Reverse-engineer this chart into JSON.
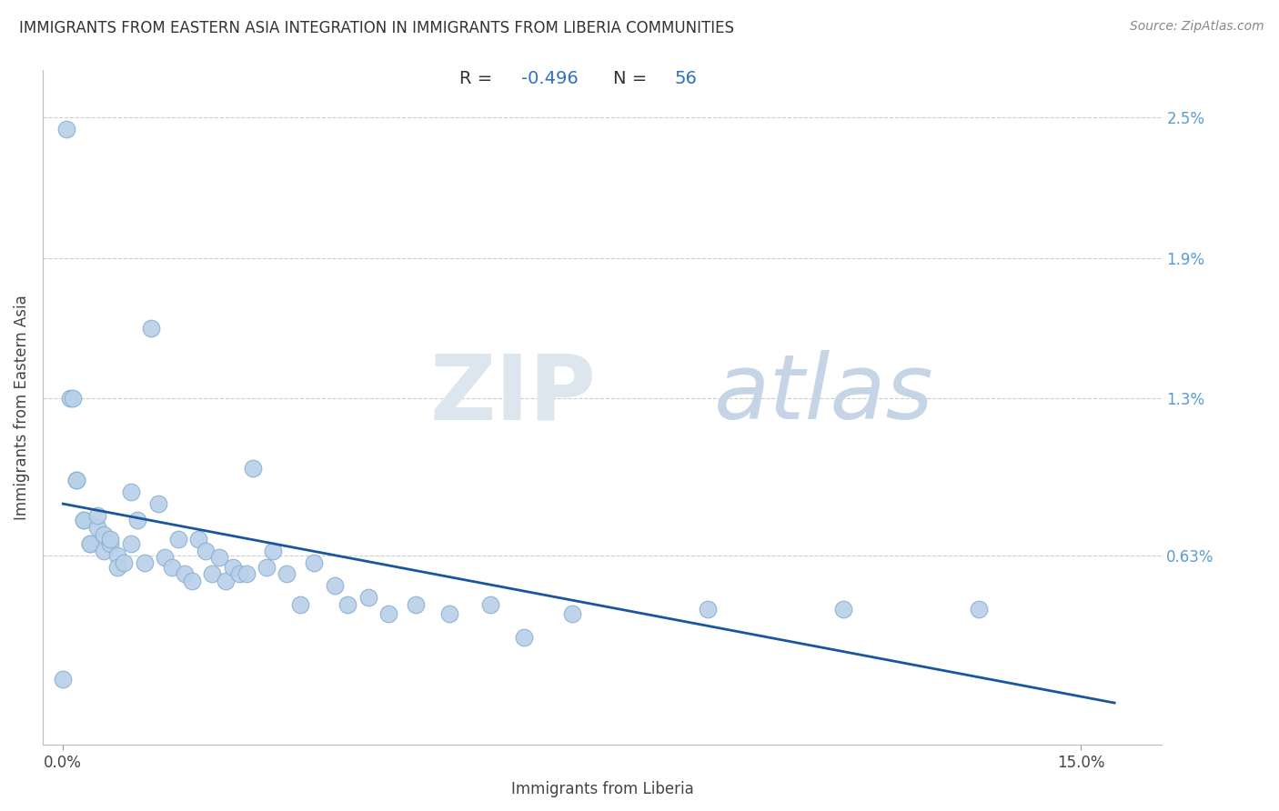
{
  "title": "IMMIGRANTS FROM EASTERN ASIA INTEGRATION IN IMMIGRANTS FROM LIBERIA COMMUNITIES",
  "source": "Source: ZipAtlas.com",
  "xlabel": "Immigrants from Liberia",
  "ylabel": "Immigrants from Eastern Asia",
  "R": -0.496,
  "N": 56,
  "xlim": [
    -0.003,
    0.162
  ],
  "ylim": [
    -0.0018,
    0.027
  ],
  "scatter_color": "#b8d0e8",
  "scatter_edge_color": "#88b0d0",
  "line_color": "#1a55a0",
  "scatter_x": [
    0.0005,
    0.001,
    0.0015,
    0.002,
    0.002,
    0.003,
    0.003,
    0.004,
    0.004,
    0.005,
    0.005,
    0.006,
    0.006,
    0.007,
    0.007,
    0.008,
    0.008,
    0.009,
    0.01,
    0.01,
    0.011,
    0.012,
    0.013,
    0.014,
    0.015,
    0.016,
    0.017,
    0.018,
    0.019,
    0.02,
    0.021,
    0.022,
    0.023,
    0.024,
    0.025,
    0.026,
    0.027,
    0.028,
    0.03,
    0.031,
    0.033,
    0.035,
    0.037,
    0.04,
    0.042,
    0.045,
    0.048,
    0.052,
    0.057,
    0.063,
    0.068,
    0.075,
    0.095,
    0.115,
    0.135,
    0.0
  ],
  "scatter_y": [
    0.0245,
    0.013,
    0.013,
    0.0095,
    0.0095,
    0.0078,
    0.0078,
    0.0068,
    0.0068,
    0.0075,
    0.008,
    0.0072,
    0.0065,
    0.0068,
    0.007,
    0.0063,
    0.0058,
    0.006,
    0.0068,
    0.009,
    0.0078,
    0.006,
    0.016,
    0.0085,
    0.0062,
    0.0058,
    0.007,
    0.0055,
    0.0052,
    0.007,
    0.0065,
    0.0055,
    0.0062,
    0.0052,
    0.0058,
    0.0055,
    0.0055,
    0.01,
    0.0058,
    0.0065,
    0.0055,
    0.0042,
    0.006,
    0.005,
    0.0042,
    0.0045,
    0.0038,
    0.0042,
    0.0038,
    0.0042,
    0.0028,
    0.0038,
    0.004,
    0.004,
    0.004,
    0.001
  ],
  "line_x0": 0.0,
  "line_x1": 0.155,
  "line_y0": 0.0085,
  "line_y1": 0.0,
  "ytick_vals": [
    0.0063,
    0.013,
    0.019,
    0.025
  ],
  "ytick_labels": [
    "0.63%",
    "1.3%",
    "1.9%",
    "2.5%"
  ],
  "xtick_vals": [
    0.0,
    0.15
  ],
  "xtick_labels": [
    "0.0%",
    "15.0%"
  ]
}
